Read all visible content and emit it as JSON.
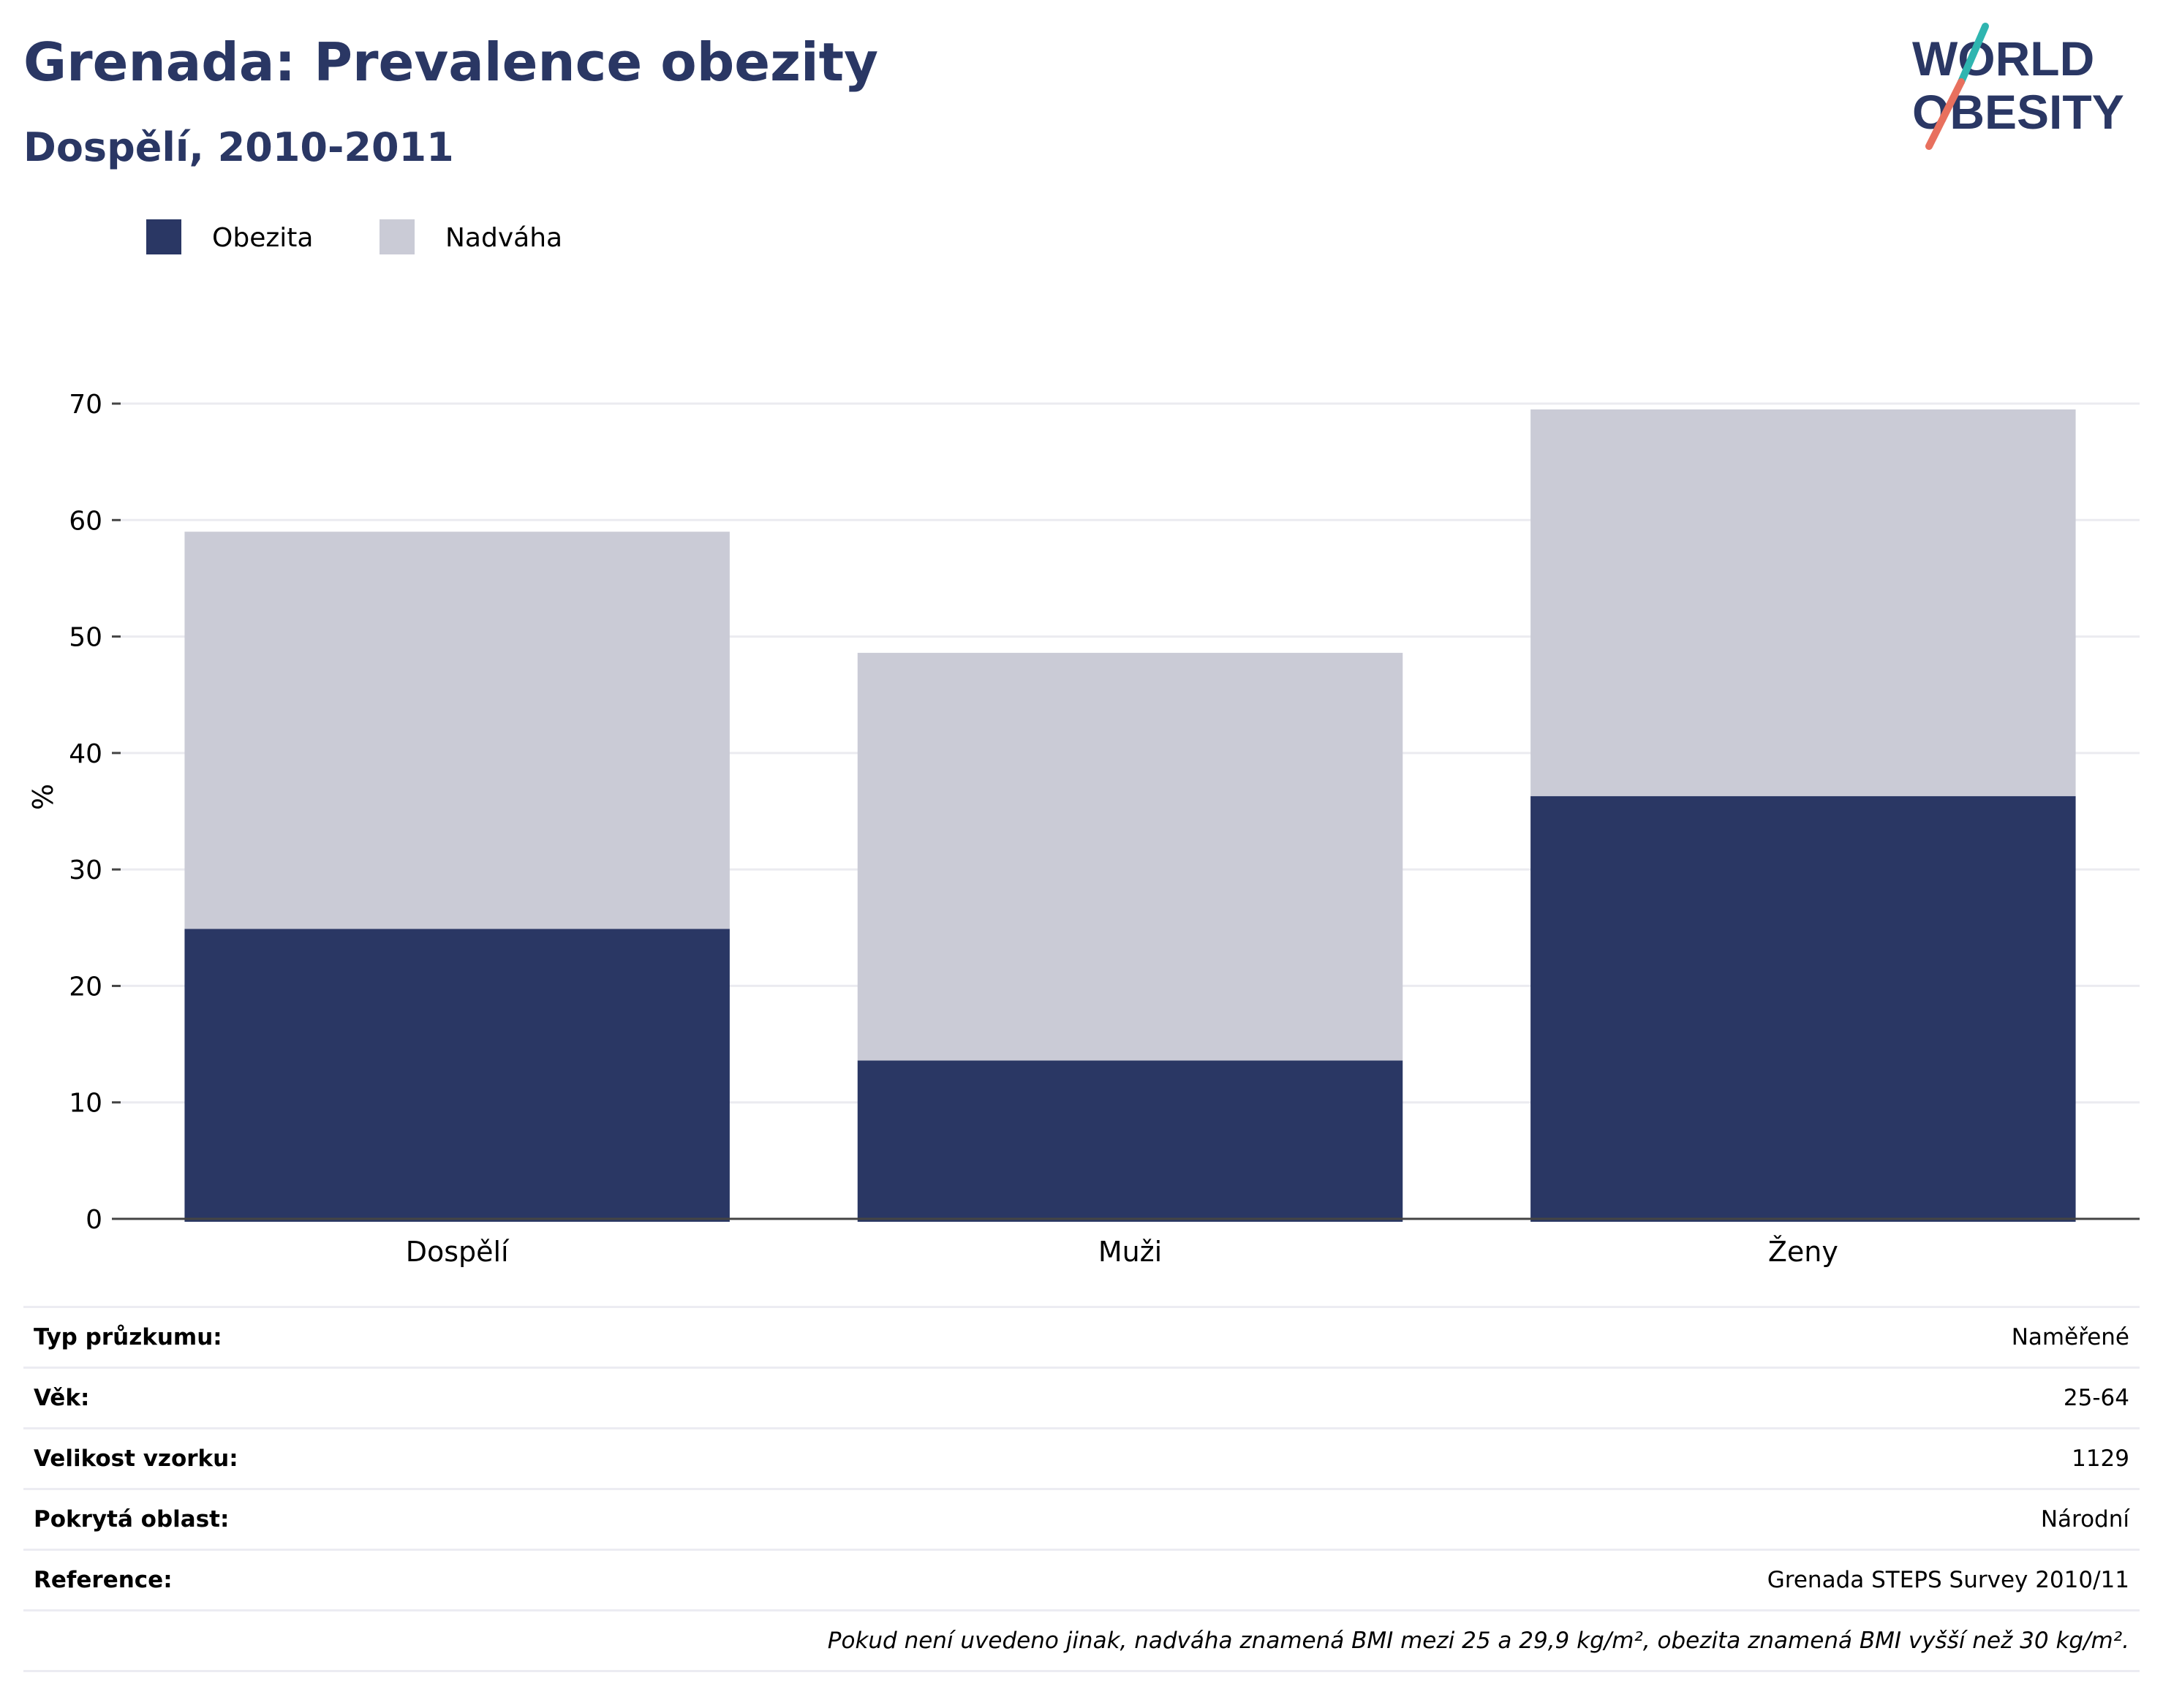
{
  "header": {
    "title": "Grenada: Prevalence obezity",
    "subtitle": "Dospělí, 2010-2011",
    "logo_text": [
      "WORLD",
      "OBESITY"
    ]
  },
  "chart_data": {
    "type": "bar",
    "stacked": true,
    "categories": [
      "Dospělí",
      "Muži",
      "Ženy"
    ],
    "series": [
      {
        "name": "Obezita",
        "color": "#2a3764",
        "values": [
          24.9,
          13.6,
          36.3
        ]
      },
      {
        "name": "Nadváha",
        "color": "#cacbd6",
        "values": [
          34.1,
          35.0,
          33.2
        ]
      }
    ],
    "ylabel": "%",
    "ylim": [
      0,
      70
    ],
    "yticks": [
      0,
      10,
      20,
      30,
      40,
      50,
      60,
      70
    ],
    "grid": true,
    "legend_position": "top-left"
  },
  "info_table": [
    {
      "label": "Typ průzkumu:",
      "value": "Naměřené"
    },
    {
      "label": "Věk:",
      "value": "25-64"
    },
    {
      "label": "Velikost vzorku:",
      "value": "1129"
    },
    {
      "label": "Pokrytá oblast:",
      "value": "Národní"
    },
    {
      "label": "Reference:",
      "value": "Grenada STEPS Survey 2010/11"
    }
  ],
  "footnote": "Pokud není uvedeno jinak, nadváha znamená BMI mezi 25 a 29,9 kg/m², obezita znamená BMI vyšší než 30 kg/m².",
  "colors": {
    "brand_navy": "#2a3764",
    "brand_teal": "#2fb5b0",
    "brand_coral": "#e8705e"
  }
}
